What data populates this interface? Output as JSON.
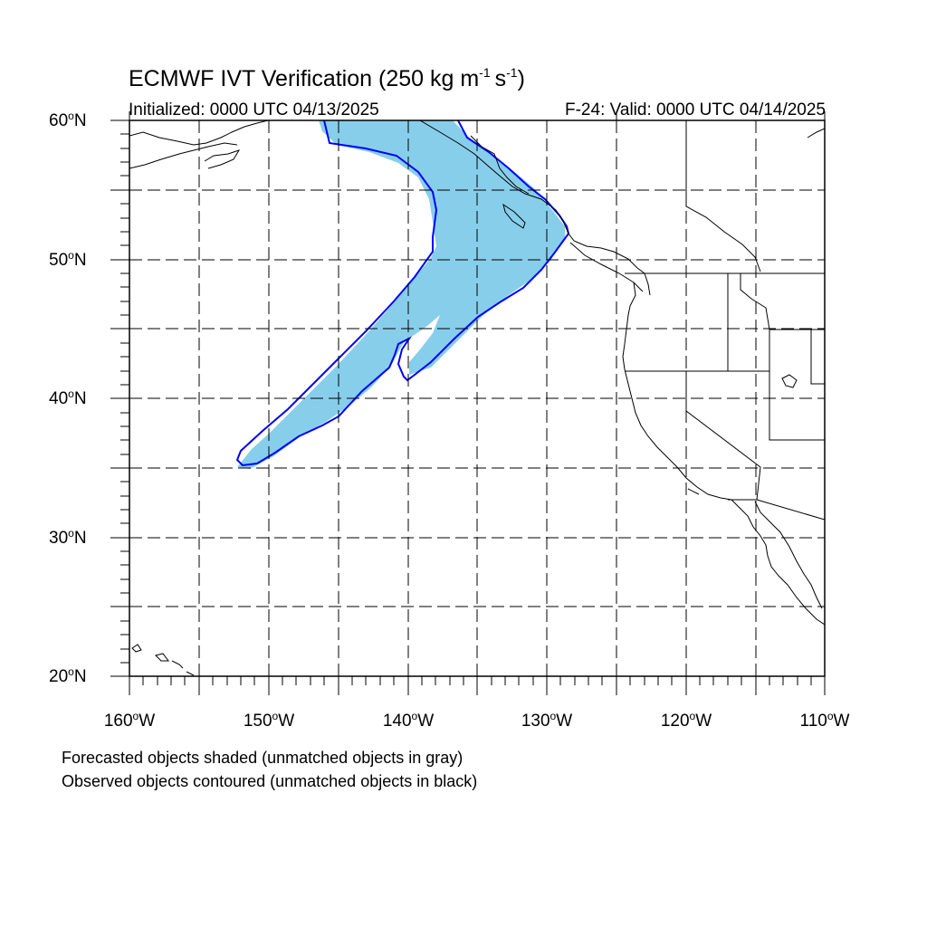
{
  "title": {
    "prefix": "ECMWF IVT Verification (250 kg m",
    "sup1": "-1",
    "mid": "s",
    "sup2": "-1",
    "suffix": ")"
  },
  "initialized": "Initialized: 0000 UTC 04/13/2025",
  "valid": "F-24: Valid: 0000 UTC 04/14/2025",
  "lat_labels": [
    "60",
    "50",
    "40",
    "30",
    "20"
  ],
  "lat_hemi": "N",
  "lon_labels": [
    "160",
    "150",
    "140",
    "130",
    "120",
    "110"
  ],
  "lon_hemi": "W",
  "deg_symbol": "o",
  "captions": [
    "Forecasted objects shaded (unmatched objects in gray)",
    "Observed objects contoured (unmatched objects in black)"
  ],
  "colors": {
    "forecast_fill": "#87ceeb",
    "observed_contour": "#0000ff",
    "grid": "#000000",
    "coastline": "#000000"
  },
  "map": {
    "lon_range": [
      -160,
      -110
    ],
    "lat_range": [
      20,
      60
    ],
    "grid": "dashed, every 5 degrees"
  }
}
